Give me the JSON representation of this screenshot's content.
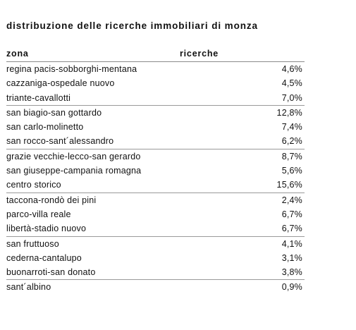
{
  "title": "distribuzione delle ricerche immobiliari di monza",
  "table": {
    "headers": {
      "zone": "zona",
      "searches": "ricerche"
    },
    "groups": [
      [
        {
          "zone": "regina pacis-sobborghi-mentana",
          "pct": "4,6%"
        },
        {
          "zone": "cazzaniga-ospedale nuovo",
          "pct": "4,5%"
        },
        {
          "zone": "triante-cavallotti",
          "pct": "7,0%"
        }
      ],
      [
        {
          "zone": "san biagio-san gottardo",
          "pct": "12,8%"
        },
        {
          "zone": "san carlo-molinetto",
          "pct": "7,4%"
        },
        {
          "zone": "san rocco-sant´alessandro",
          "pct": "6,2%"
        }
      ],
      [
        {
          "zone": "grazie vecchie-lecco-san gerardo",
          "pct": "8,7%"
        },
        {
          "zone": "san giuseppe-campania romagna",
          "pct": "5,6%"
        },
        {
          "zone": "centro storico",
          "pct": "15,6%"
        }
      ],
      [
        {
          "zone": "taccona-rondò dei pini",
          "pct": "2,4%"
        },
        {
          "zone": "parco-villa reale",
          "pct": "6,7%"
        },
        {
          "zone": "libertà-stadio nuovo",
          "pct": "6,7%"
        }
      ],
      [
        {
          "zone": "san fruttuoso",
          "pct": "4,1%"
        },
        {
          "zone": "cederna-cantalupo",
          "pct": "3,1%"
        },
        {
          "zone": "buonarroti-san donato",
          "pct": "3,8%"
        }
      ],
      [
        {
          "zone": "sant´albino",
          "pct": "0,9%"
        }
      ]
    ]
  }
}
